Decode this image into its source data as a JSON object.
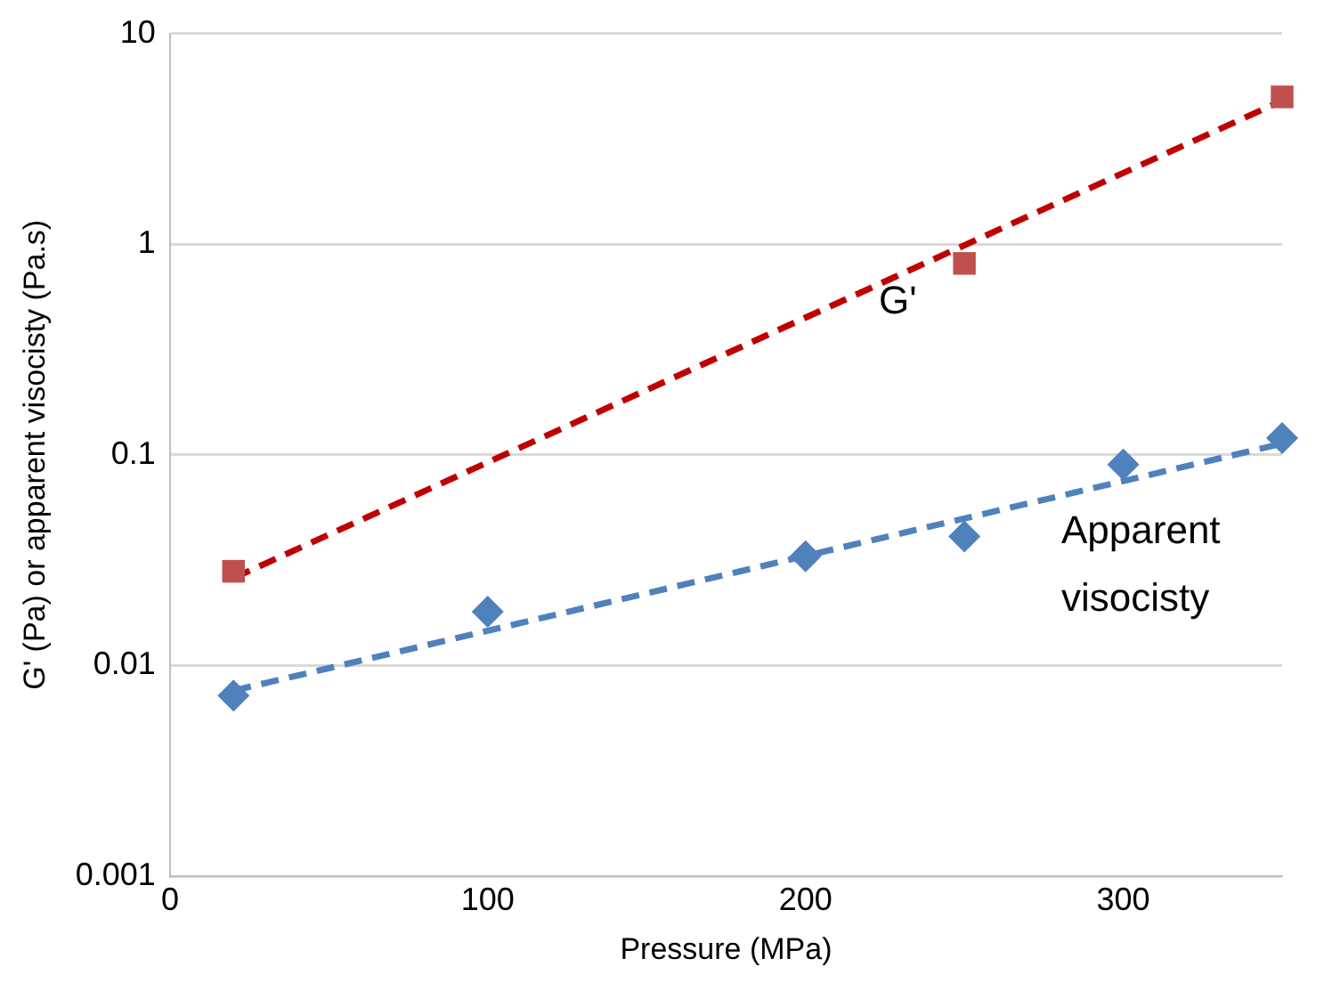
{
  "chart_data": {
    "type": "scatter",
    "xlabel": "Pressure (MPa)",
    "ylabel": "G' (Pa) or apparent visocisty (Pa.s)",
    "log": "y",
    "xlim": [
      0,
      350
    ],
    "xticks": [
      0,
      100,
      200,
      300
    ],
    "ylim": [
      0.001,
      10
    ],
    "yticks": [
      0.001,
      0.01,
      0.1,
      1,
      10
    ],
    "grid": "y",
    "legend": false,
    "series": [
      {
        "type": "line",
        "color": "#c00000",
        "x": [
          20,
          350
        ],
        "values": [
          0.026,
          4.8
        ],
        "marker": "none",
        "line_style": "dashed"
      },
      {
        "type": "line",
        "color": "#4f81bd",
        "x": [
          20,
          350
        ],
        "values": [
          0.0076,
          0.113
        ],
        "marker": "none",
        "line_style": "dashed"
      },
      {
        "type": "scatter",
        "name": "G'",
        "color": "#c0504d",
        "x": [
          20,
          250,
          350
        ],
        "values": [
          0.028,
          0.81,
          5
        ],
        "marker": "square"
      },
      {
        "type": "scatter",
        "name": "Apparent visocisty",
        "color": "#4f81bd",
        "x": [
          20,
          100,
          200,
          250,
          300,
          350
        ],
        "values": [
          0.0072,
          0.018,
          0.033,
          0.041,
          0.09,
          0.12
        ],
        "marker": "diamond"
      }
    ]
  }
}
